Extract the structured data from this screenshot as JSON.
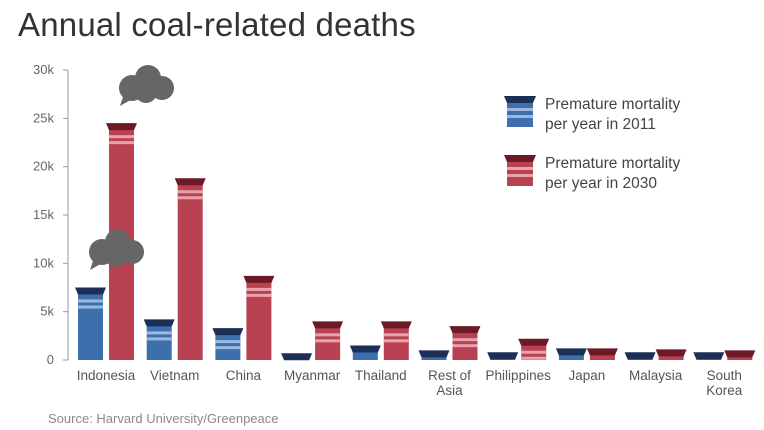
{
  "title": "Annual coal-related deaths",
  "source": "Source: Harvard University/Greenpeace",
  "colors": {
    "s2011_body": "#3d6fad",
    "s2011_cap": "#1b2f57",
    "s2011_stripe": "#9cb8dc",
    "s2030_body": "#b84152",
    "s2030_cap": "#6e1a26",
    "s2030_stripe": "#e7a3ad",
    "cloud": "#666666",
    "axis": "#999999"
  },
  "icons": {
    "smoke": "smoke-cloud-icon",
    "legend": "chimney-icon"
  },
  "chart_data": {
    "type": "bar",
    "title": "Annual coal-related deaths",
    "xlabel": "",
    "ylabel": "",
    "ylim": [
      0,
      30000
    ],
    "yticks": [
      0,
      5000,
      10000,
      15000,
      20000,
      25000,
      30000
    ],
    "ytick_labels": [
      "0",
      "5k",
      "10k",
      "15k",
      "20k",
      "25k",
      "30k"
    ],
    "categories": [
      [
        "Indonesia"
      ],
      [
        "Vietnam"
      ],
      [
        "China"
      ],
      [
        "Myanmar"
      ],
      [
        "Thailand"
      ],
      [
        "Rest of",
        "Asia"
      ],
      [
        "Philippines"
      ],
      [
        "Japan"
      ],
      [
        "Malaysia"
      ],
      [
        "South",
        "Korea"
      ]
    ],
    "series": [
      {
        "name": "Premature mortality per year in 2011",
        "legend_lines": [
          "Premature mortality",
          "per year in 2011"
        ],
        "values": [
          7500,
          4200,
          3300,
          700,
          1500,
          1000,
          800,
          1200,
          800,
          800
        ]
      },
      {
        "name": "Premature mortality per year in 2030",
        "legend_lines": [
          "Premature mortality",
          "per year in 2030"
        ],
        "values": [
          24500,
          18800,
          8700,
          4000,
          4000,
          3500,
          2200,
          1200,
          1100,
          1000
        ]
      }
    ],
    "grid": false,
    "legend": "top-right"
  }
}
